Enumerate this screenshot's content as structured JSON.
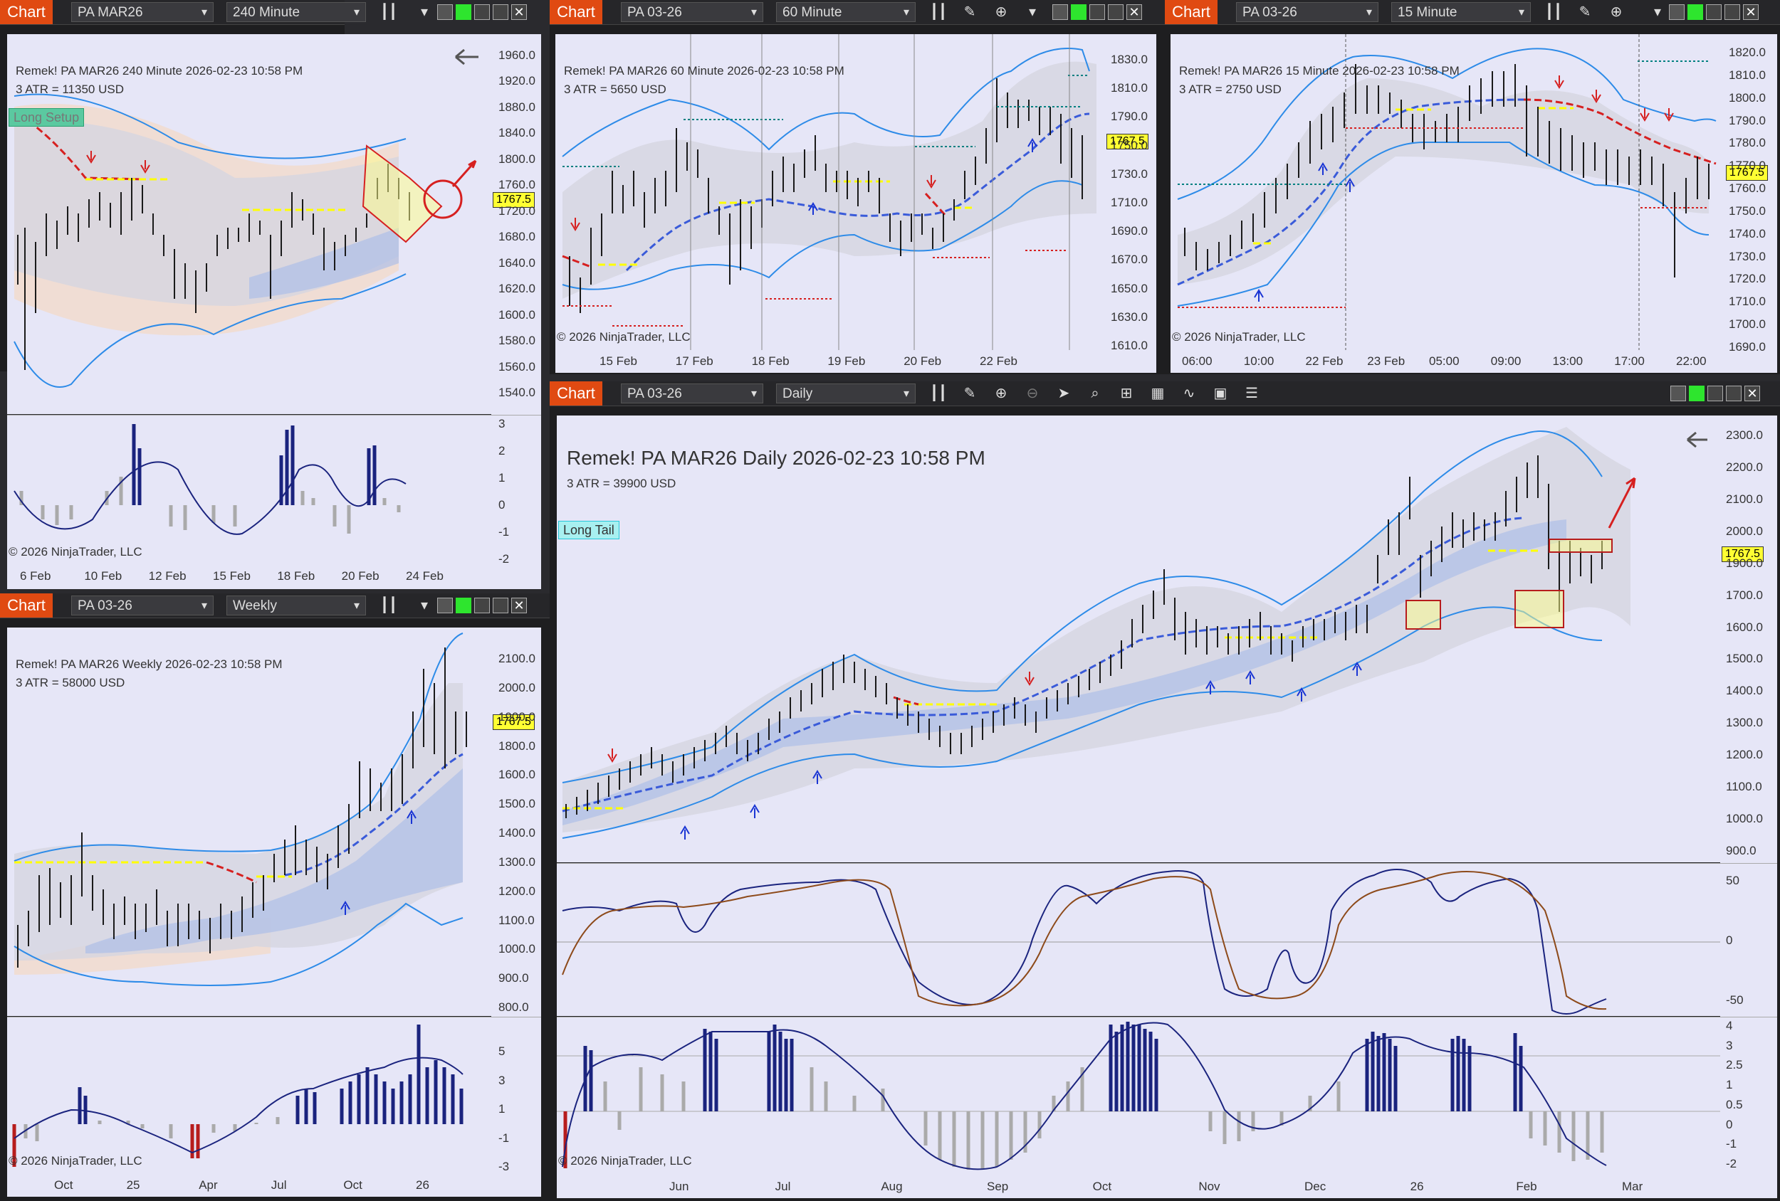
{
  "app": {
    "chart_label": "Chart"
  },
  "windows": {
    "w240": {
      "instrument": "PA MAR26",
      "interval": "240 Minute",
      "header": "Remek!  PA MAR26  240 Minute  2026-02-23 10:58 PM",
      "atr": "3 ATR = 11350 USD",
      "setup_tag": "Long Setup",
      "copyright": "© 2026 NinjaTrader, LLC",
      "price_tag": "1767.5",
      "price_ticks": [
        "1960.0",
        "1920.0",
        "1880.0",
        "1840.0",
        "1800.0",
        "1760.0",
        "1720.0",
        "1680.0",
        "1640.0",
        "1620.0",
        "1600.0",
        "1580.0",
        "1560.0",
        "1540.0"
      ],
      "osc_ticks": [
        "3",
        "2",
        "1",
        "0",
        "-1",
        "-2"
      ],
      "dates": [
        "6 Feb",
        "10 Feb",
        "12 Feb",
        "15 Feb",
        "18 Feb",
        "20 Feb",
        "24 Feb"
      ]
    },
    "w60": {
      "instrument": "PA 03-26",
      "interval": "60 Minute",
      "header": "Remek!  PA MAR26  60 Minute  2026-02-23 10:58 PM",
      "atr": "3 ATR = 5650 USD",
      "copyright": "© 2026 NinjaTrader, LLC",
      "price_tag": "1767.5",
      "price_ticks": [
        "1830.0",
        "1810.0",
        "1790.0",
        "1750.0",
        "1730.0",
        "1710.0",
        "1690.0",
        "1670.0",
        "1650.0",
        "1630.0",
        "1610.0"
      ],
      "dates": [
        "15 Feb",
        "17 Feb",
        "18 Feb",
        "19 Feb",
        "20 Feb",
        "22 Feb"
      ]
    },
    "w15": {
      "instrument": "PA 03-26",
      "interval": "15 Minute",
      "header": "Remek!  PA MAR26  15 Minute  2026-02-23 10:58 PM",
      "atr": "3 ATR = 2750 USD",
      "copyright": "© 2026 NinjaTrader, LLC",
      "price_tag": "1767.5",
      "price_ticks": [
        "1820.0",
        "1810.0",
        "1800.0",
        "1790.0",
        "1780.0",
        "1770.0",
        "1760.0",
        "1750.0",
        "1740.0",
        "1730.0",
        "1720.0",
        "1710.0",
        "1700.0",
        "1690.0"
      ],
      "dates": [
        "06:00",
        "10:00",
        "22 Feb",
        "23 Feb",
        "05:00",
        "09:00",
        "13:00",
        "17:00",
        "22:00"
      ]
    },
    "weekly": {
      "instrument": "PA 03-26",
      "interval": "Weekly",
      "header": "Remek!  PA MAR26  Weekly  2026-02-23 10:58 PM",
      "atr": "3 ATR = 58000 USD",
      "copyright": "© 2026 NinjaTrader, LLC",
      "price_tag": "1767.5",
      "price_ticks": [
        "2100.0",
        "2000.0",
        "1900.0",
        "1800.0",
        "1600.0",
        "1500.0",
        "1400.0",
        "1300.0",
        "1200.0",
        "1100.0",
        "1000.0",
        "900.0",
        "800.0"
      ],
      "osc_ticks": [
        "5",
        "3",
        "1",
        "-1",
        "-3"
      ],
      "dates": [
        "Oct",
        "25",
        "Apr",
        "Jul",
        "Oct",
        "26"
      ]
    },
    "daily": {
      "instrument": "PA 03-26",
      "interval": "Daily",
      "header": "Remek!  PA MAR26  Daily  2026-02-23 10:58 PM",
      "atr": "3 ATR = 39900 USD",
      "setup_tag": "Long Tail",
      "copyright": "© 2026 NinjaTrader, LLC",
      "price_tag": "1767.5",
      "price_ticks": [
        "2300.0",
        "2200.0",
        "2100.0",
        "2000.0",
        "1900.0",
        "1700.0",
        "1600.0",
        "1500.0",
        "1400.0",
        "1300.0",
        "1200.0",
        "1100.0",
        "1000.0",
        "900.0"
      ],
      "osc1_ticks": [
        "50",
        "0",
        "-50"
      ],
      "osc2_ticks": [
        "4",
        "3",
        "2.5",
        "1",
        "0.5",
        "0",
        "-1",
        "-2"
      ],
      "dates": [
        "Jun",
        "Jul",
        "Aug",
        "Sep",
        "Oct",
        "Nov",
        "Dec",
        "26",
        "Feb",
        "Mar"
      ]
    }
  }
}
